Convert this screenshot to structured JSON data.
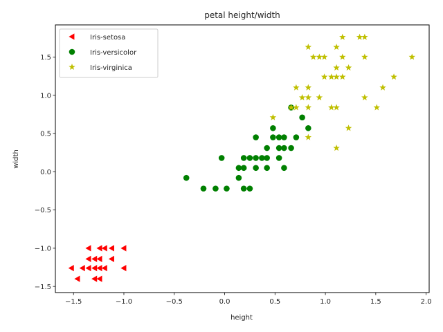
{
  "chart_data": {
    "type": "scatter",
    "title": "petal height/width",
    "xlabel": "height",
    "ylabel": "width",
    "xlim": [
      -1.68,
      2.03
    ],
    "ylim": [
      -1.58,
      1.92
    ],
    "xticks": [
      -1.5,
      -1.0,
      -0.5,
      0.0,
      0.5,
      1.0,
      1.5,
      2.0
    ],
    "xtick_labels": [
      "−1.5",
      "−1.0",
      "−0.5",
      "0.0",
      "0.5",
      "1.0",
      "1.5",
      "2.0"
    ],
    "yticks": [
      -1.5,
      -1.0,
      -0.5,
      0.0,
      0.5,
      1.0,
      1.5
    ],
    "ytick_labels": [
      "−1.5",
      "−1.0",
      "−0.5",
      "0.0",
      "0.5",
      "1.0",
      "1.5"
    ],
    "grid": false,
    "legend_position": "top-left",
    "series": [
      {
        "name": "Iris-setosa",
        "marker": "triangle-left",
        "color": "#ff0000",
        "points": [
          [
            -1.35,
            -1.0
          ],
          [
            -1.24,
            -1.0
          ],
          [
            -1.19,
            -1.0
          ],
          [
            -1.12,
            -1.0
          ],
          [
            -1.0,
            -1.0
          ],
          [
            -1.35,
            -1.14
          ],
          [
            -1.29,
            -1.14
          ],
          [
            -1.24,
            -1.14
          ],
          [
            -1.12,
            -1.14
          ],
          [
            -1.52,
            -1.26
          ],
          [
            -1.41,
            -1.26
          ],
          [
            -1.35,
            -1.26
          ],
          [
            -1.29,
            -1.26
          ],
          [
            -1.24,
            -1.26
          ],
          [
            -1.19,
            -1.26
          ],
          [
            -1.0,
            -1.26
          ],
          [
            -1.46,
            -1.4
          ],
          [
            -1.29,
            -1.4
          ],
          [
            -1.24,
            -1.4
          ]
        ]
      },
      {
        "name": "Iris-versicolor",
        "marker": "circle",
        "color": "#008000",
        "points": [
          [
            0.66,
            0.84
          ],
          [
            0.77,
            0.71
          ],
          [
            0.48,
            0.57
          ],
          [
            0.83,
            0.57
          ],
          [
            0.31,
            0.45
          ],
          [
            0.48,
            0.45
          ],
          [
            0.54,
            0.45
          ],
          [
            0.59,
            0.45
          ],
          [
            0.71,
            0.45
          ],
          [
            0.42,
            0.31
          ],
          [
            0.54,
            0.31
          ],
          [
            0.59,
            0.31
          ],
          [
            0.66,
            0.31
          ],
          [
            -0.03,
            0.18
          ],
          [
            0.19,
            0.18
          ],
          [
            0.25,
            0.18
          ],
          [
            0.31,
            0.18
          ],
          [
            0.37,
            0.18
          ],
          [
            0.42,
            0.18
          ],
          [
            0.54,
            0.18
          ],
          [
            0.14,
            0.05
          ],
          [
            0.19,
            0.05
          ],
          [
            0.31,
            0.05
          ],
          [
            0.42,
            0.05
          ],
          [
            0.59,
            0.05
          ],
          [
            -0.38,
            -0.08
          ],
          [
            0.14,
            -0.08
          ],
          [
            -0.21,
            -0.22
          ],
          [
            -0.09,
            -0.22
          ],
          [
            0.02,
            -0.22
          ],
          [
            0.19,
            -0.22
          ],
          [
            0.25,
            -0.22
          ]
        ]
      },
      {
        "name": "Iris-virginica",
        "marker": "star",
        "color": "#bfbf00",
        "points": [
          [
            1.17,
            1.76
          ],
          [
            1.34,
            1.76
          ],
          [
            1.39,
            1.76
          ],
          [
            0.83,
            1.63
          ],
          [
            1.11,
            1.63
          ],
          [
            0.88,
            1.5
          ],
          [
            0.94,
            1.5
          ],
          [
            0.99,
            1.5
          ],
          [
            1.17,
            1.5
          ],
          [
            1.39,
            1.5
          ],
          [
            1.86,
            1.5
          ],
          [
            1.11,
            1.36
          ],
          [
            1.23,
            1.36
          ],
          [
            0.99,
            1.24
          ],
          [
            1.06,
            1.24
          ],
          [
            1.11,
            1.24
          ],
          [
            1.17,
            1.24
          ],
          [
            1.68,
            1.24
          ],
          [
            0.71,
            1.1
          ],
          [
            0.83,
            1.1
          ],
          [
            1.57,
            1.1
          ],
          [
            0.77,
            0.97
          ],
          [
            0.83,
            0.97
          ],
          [
            0.94,
            0.97
          ],
          [
            1.39,
            0.97
          ],
          [
            0.66,
            0.84
          ],
          [
            0.71,
            0.84
          ],
          [
            0.83,
            0.84
          ],
          [
            1.06,
            0.84
          ],
          [
            1.11,
            0.84
          ],
          [
            1.51,
            0.84
          ],
          [
            0.48,
            0.71
          ],
          [
            1.23,
            0.57
          ],
          [
            0.83,
            0.45
          ],
          [
            1.11,
            0.31
          ]
        ]
      }
    ]
  }
}
